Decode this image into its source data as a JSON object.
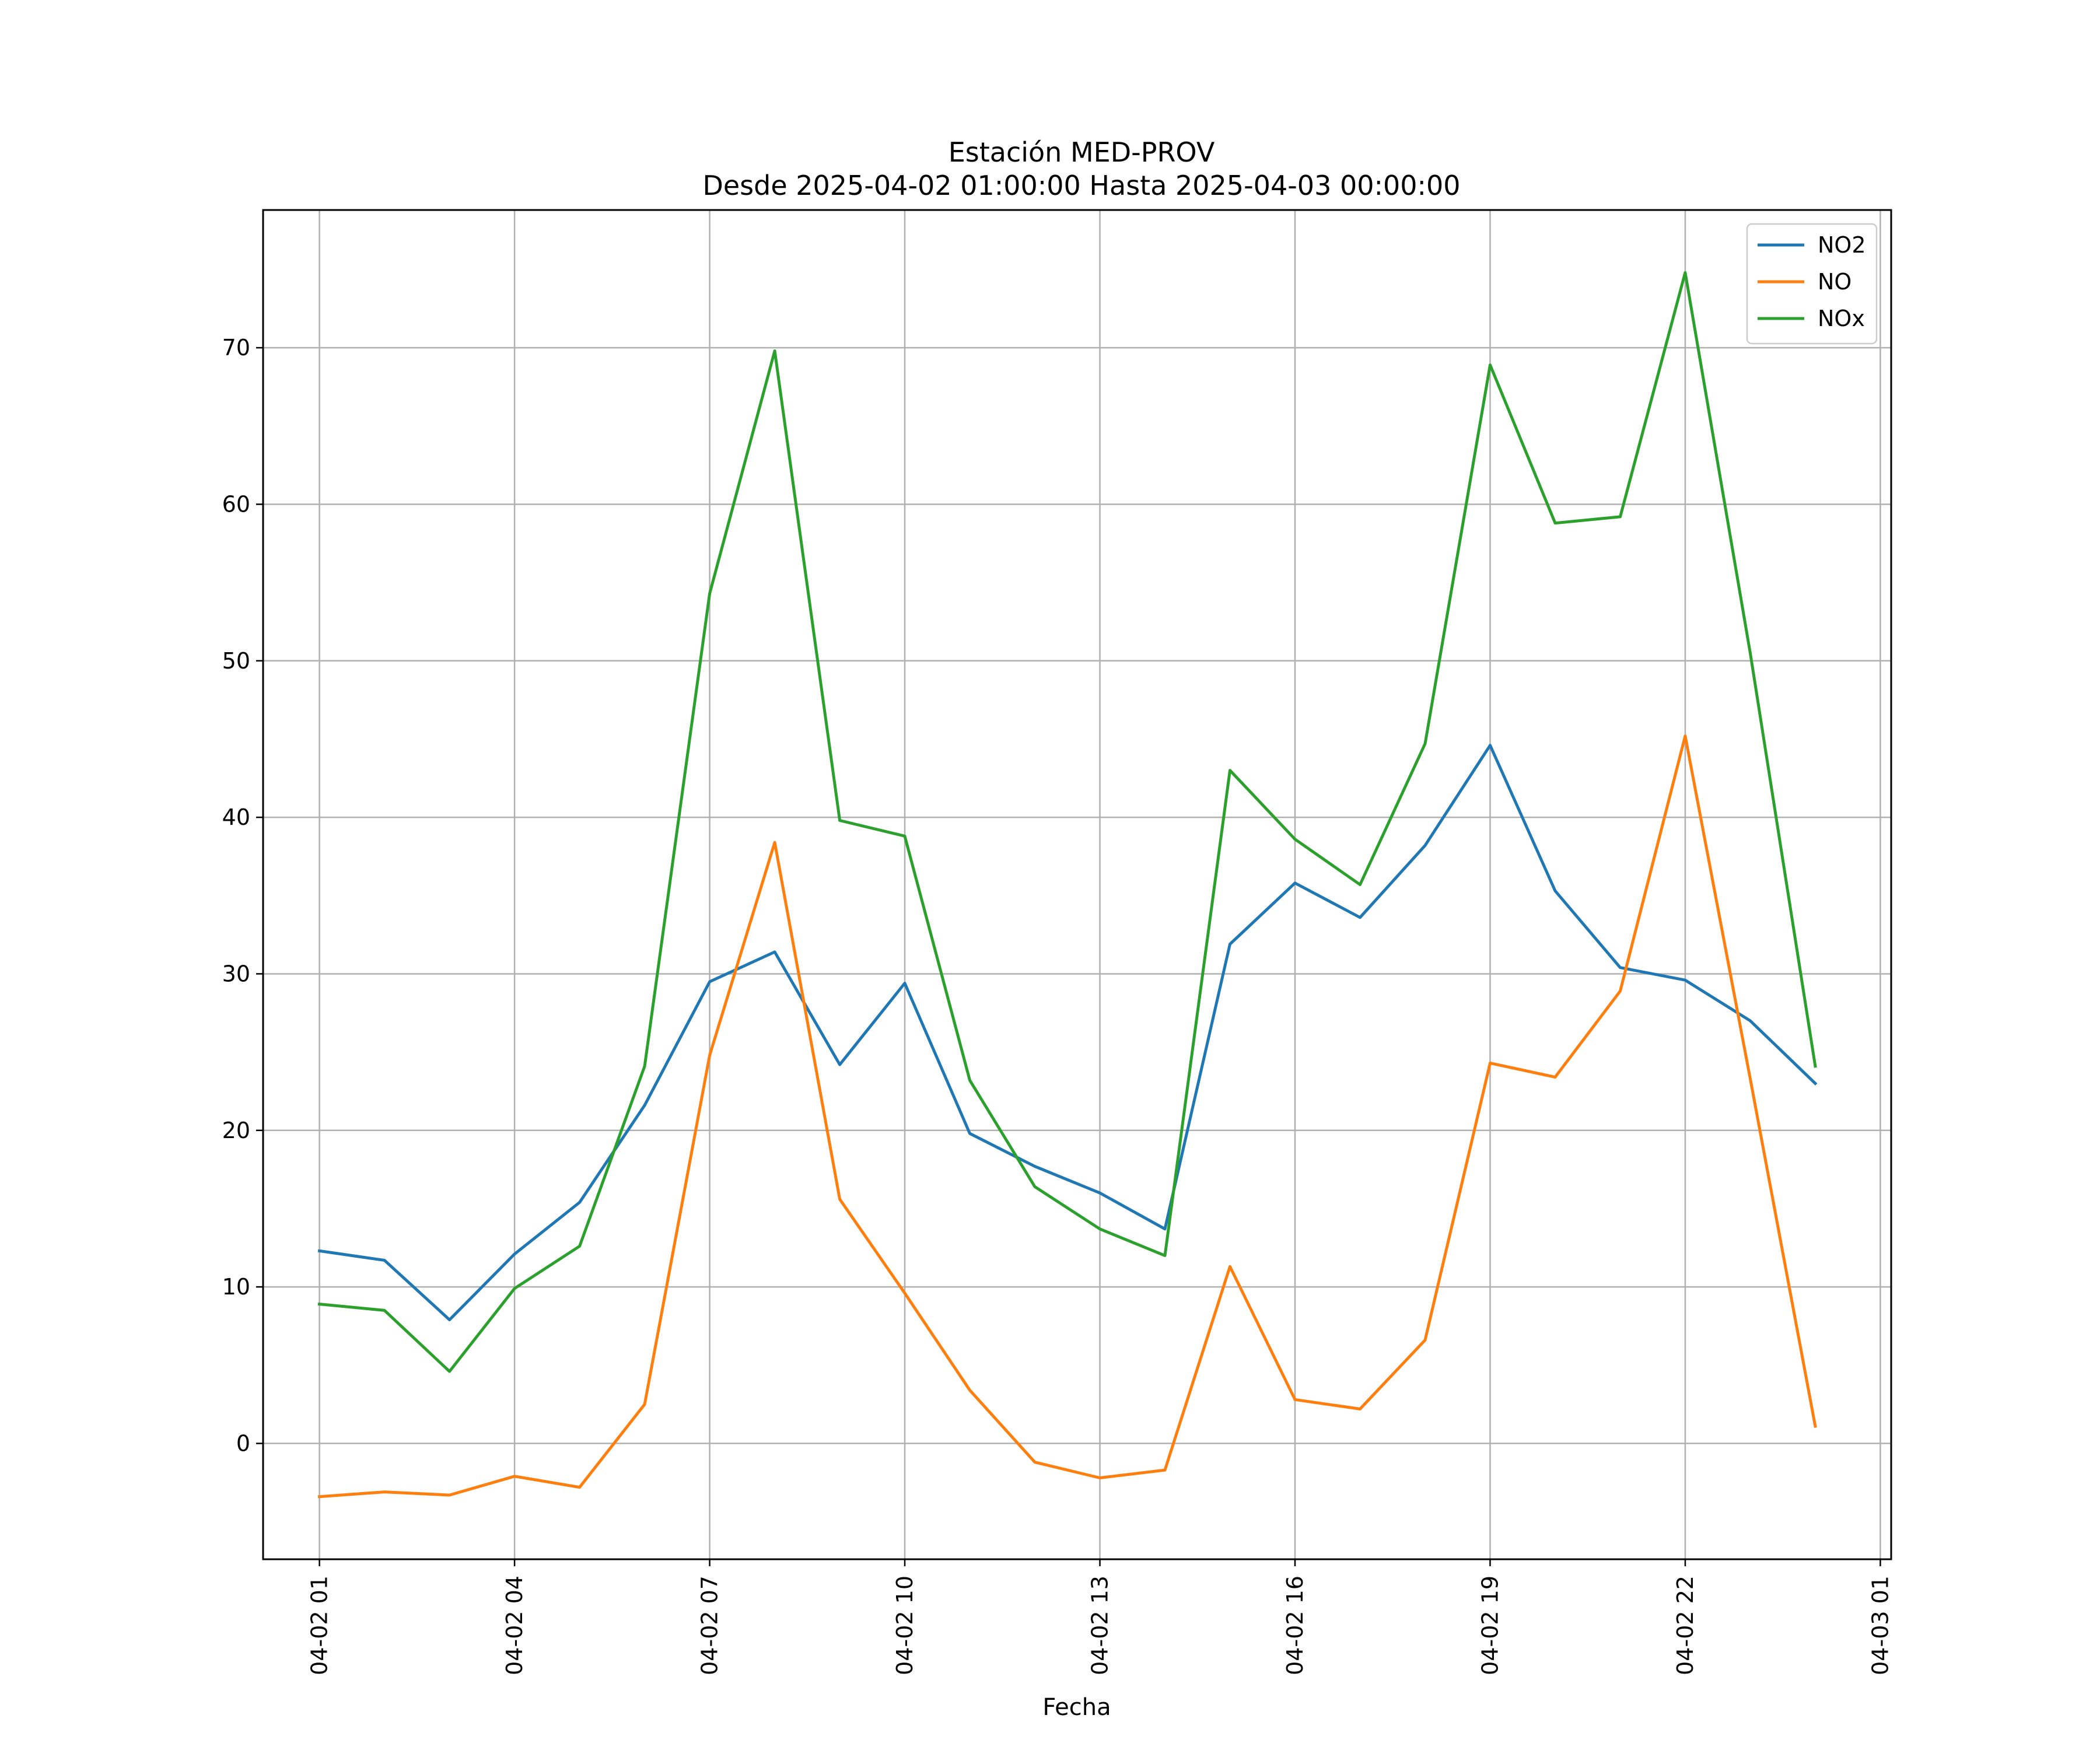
{
  "chart_data": {
    "type": "line",
    "title": "Estación MED-PROV",
    "subtitle": "Desde 2025-04-02 01:00:00 Hasta 2025-04-03 00:00:00",
    "xlabel": "Fecha",
    "ylabel": "",
    "x": [
      "04-02 01",
      "04-02 02",
      "04-02 03",
      "04-02 04",
      "04-02 05",
      "04-02 06",
      "04-02 07",
      "04-02 08",
      "04-02 09",
      "04-02 10",
      "04-02 11",
      "04-02 12",
      "04-02 13",
      "04-02 14",
      "04-02 15",
      "04-02 16",
      "04-02 17",
      "04-02 18",
      "04-02 19",
      "04-02 20",
      "04-02 21",
      "04-02 22",
      "04-02 23",
      "04-03 00"
    ],
    "x_ticks": [
      "04-02 01",
      "04-02 04",
      "04-02 07",
      "04-02 10",
      "04-02 13",
      "04-02 16",
      "04-02 19",
      "04-02 22",
      "04-03 01"
    ],
    "y_ticks": [
      0,
      10,
      20,
      30,
      40,
      50,
      60,
      70
    ],
    "ylim": [
      -7.4,
      78.8
    ],
    "xlim": [
      "2025-04-02 00:08",
      "2025-04-03 01:10"
    ],
    "grid": true,
    "legend_position": "top-right",
    "series": [
      {
        "name": "NO2",
        "color": "#1f77b4",
        "values": [
          12.3,
          11.7,
          7.9,
          12.1,
          15.4,
          21.6,
          29.5,
          31.4,
          24.2,
          29.4,
          19.8,
          17.7,
          16.0,
          13.7,
          31.9,
          35.8,
          33.6,
          38.2,
          44.6,
          35.3,
          30.4,
          29.6,
          27.0,
          23.0
        ]
      },
      {
        "name": "NO",
        "color": "#ff7f0e",
        "values": [
          -3.4,
          -3.1,
          -3.3,
          -2.1,
          -2.8,
          2.5,
          24.8,
          38.4,
          15.6,
          9.6,
          3.4,
          -1.2,
          -2.2,
          -1.7,
          11.3,
          2.8,
          2.2,
          6.6,
          24.3,
          23.4,
          28.9,
          45.2,
          23.3,
          1.1
        ]
      },
      {
        "name": "NOx",
        "color": "#2ca02c",
        "values": [
          8.9,
          8.5,
          4.6,
          9.9,
          12.6,
          24.1,
          54.3,
          69.8,
          39.8,
          38.8,
          23.2,
          16.4,
          13.7,
          12.0,
          43.0,
          38.6,
          35.7,
          44.7,
          68.9,
          58.8,
          59.2,
          74.8,
          50.5,
          24.1
        ]
      }
    ]
  }
}
